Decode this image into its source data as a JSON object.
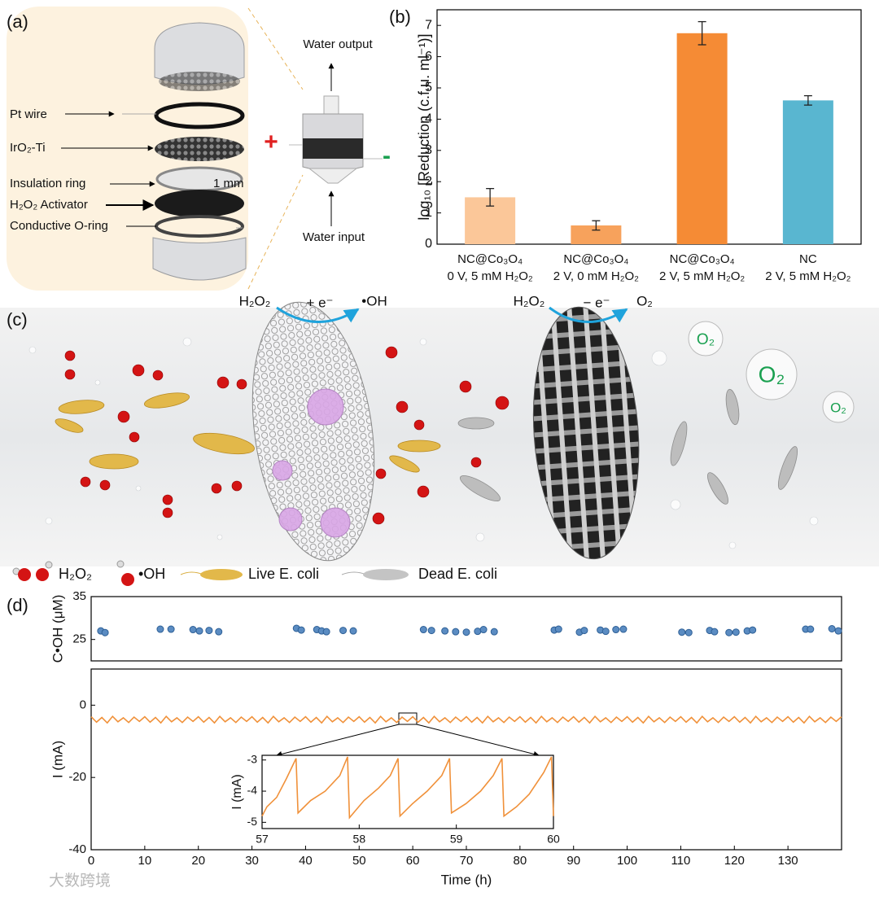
{
  "panel_a": {
    "label": "(a)",
    "parts": [
      "Pt wire",
      "IrO₂-Ti",
      "Insulation ring",
      "H₂O₂ Activator",
      "Conductive O-ring"
    ],
    "scale": "1 mm",
    "water_output": "Water output",
    "water_input": "Water input",
    "anode": "+",
    "cathode": "-"
  },
  "panel_c": {
    "label": "(c)",
    "reactions": [
      {
        "reactant": "H₂O₂",
        "electron": "+ e⁻",
        "product": "•OH"
      },
      {
        "reactant": "H₂O₂",
        "electron": "− e⁻",
        "product": "O₂"
      }
    ],
    "bubbles": [
      "O₂",
      "O₂",
      "O₂"
    ],
    "legend": [
      "H₂O₂",
      "•OH",
      "Live E. coli",
      "Dead E. coli"
    ]
  },
  "watermark": "大数跨境",
  "chart_data": [
    {
      "type": "bar",
      "panel": "(b)",
      "ylabel": "log₁₀ [Reduction (c.f.u. ml⁻¹)]",
      "categories": [
        [
          "NC@Co₃O₄",
          "0 V, 5 mM H₂O₂"
        ],
        [
          "NC@Co₃O₄",
          "2 V, 0 mM H₂O₂"
        ],
        [
          "NC@Co₃O₄",
          "2 V, 5 mM H₂O₂"
        ],
        [
          "NC",
          "2 V, 5 mM H₂O₂"
        ]
      ],
      "values": [
        1.5,
        0.6,
        6.75,
        4.6
      ],
      "errors": [
        0.28,
        0.15,
        0.37,
        0.15
      ],
      "colors": [
        "#fbc799",
        "#f7a25c",
        "#f58b35",
        "#59b6d0"
      ],
      "ylim": [
        0,
        7.5
      ],
      "yticks": [
        0,
        1,
        2,
        3,
        4,
        5,
        6,
        7
      ]
    },
    {
      "type": "scatter",
      "panel": "(d)",
      "ylabel": "C•OH (μM)",
      "color": "#5b8cc2",
      "x": [
        1.8,
        2.6,
        12.9,
        14.9,
        19,
        20.2,
        22,
        23.8,
        38.3,
        39.2,
        42.1,
        43,
        43.9,
        47,
        48.9,
        62,
        63.5,
        66,
        68,
        70,
        72.1,
        73.2,
        75.2,
        86.4,
        87.2,
        91.1,
        92,
        95,
        96,
        97.9,
        99.3,
        110.2,
        111.5,
        115.4,
        116.3,
        119,
        120.3,
        122.4,
        123.4,
        133.3,
        134.2,
        138.2,
        139.4
      ],
      "values": [
        27,
        26.6,
        27.4,
        27.4,
        27.3,
        27,
        27.1,
        26.8,
        27.6,
        27.2,
        27.3,
        27,
        26.8,
        27.1,
        27,
        27.3,
        27.1,
        27,
        26.8,
        26.7,
        26.9,
        27.3,
        26.8,
        27.2,
        27.4,
        26.7,
        27.1,
        27.2,
        26.9,
        27.3,
        27.4,
        26.7,
        26.6,
        27.1,
        26.8,
        26.6,
        26.7,
        27,
        27.2,
        27.4,
        27.4,
        27.5,
        27
      ],
      "xlim": [
        0,
        140
      ],
      "ylim": [
        20,
        35
      ],
      "yticks": [
        25,
        35
      ]
    },
    {
      "type": "line",
      "ylabel": "I (mA)",
      "xlabel": "Time (h)",
      "color": "#f0913a",
      "x": [
        0,
        1,
        2,
        3,
        4,
        5,
        6,
        7,
        8,
        9,
        10,
        11,
        12,
        13,
        14,
        15,
        16,
        17,
        18,
        19,
        20,
        21,
        22,
        23,
        24,
        25,
        26,
        27,
        28,
        29,
        30,
        31,
        32,
        33,
        34,
        35,
        36,
        37,
        38,
        39,
        40,
        41,
        42,
        43,
        44,
        45,
        46,
        47,
        48,
        49,
        50,
        51,
        52,
        53,
        54,
        55,
        56,
        57,
        58,
        59,
        60,
        61,
        62,
        63,
        64,
        65,
        66,
        67,
        68,
        69,
        70,
        71,
        72,
        73,
        74,
        75,
        76,
        77,
        78,
        79,
        80,
        81,
        82,
        83,
        84,
        85,
        86,
        87,
        88,
        89,
        90,
        91,
        92,
        93,
        94,
        95,
        96,
        97,
        98,
        99,
        100,
        101,
        102,
        103,
        104,
        105,
        106,
        107,
        108,
        109,
        110,
        111,
        112,
        113,
        114,
        115,
        116,
        117,
        118,
        119,
        120,
        121,
        122,
        123,
        124,
        125,
        126,
        127,
        128,
        129,
        130,
        131,
        132,
        133,
        134,
        135,
        136,
        137,
        138,
        139,
        140
      ],
      "values": [
        -3.2,
        -4.7,
        -3.4,
        -4.9,
        -3.1,
        -4.6,
        -3.5,
        -4.8,
        -3.3,
        -4.5,
        -3.2,
        -4.7,
        -3.4,
        -4.9,
        -3.1,
        -4.6,
        -3.5,
        -4.8,
        -3.3,
        -4.5,
        -3.2,
        -4.7,
        -3.4,
        -4.9,
        -3.1,
        -4.6,
        -3.5,
        -4.8,
        -3.3,
        -4.5,
        -3.2,
        -4.7,
        -3.4,
        -4.9,
        -3.1,
        -4.6,
        -3.5,
        -4.8,
        -3.3,
        -4.5,
        -3.2,
        -4.7,
        -3.4,
        -4.9,
        -3.1,
        -4.6,
        -3.5,
        -4.8,
        -3.3,
        -4.5,
        -3.2,
        -4.7,
        -3.4,
        -4.9,
        -3.1,
        -4.6,
        -3.5,
        -4.8,
        -3.3,
        -4.5,
        -3.2,
        -4.7,
        -3.4,
        -4.9,
        -3.1,
        -4.6,
        -3.5,
        -4.8,
        -3.3,
        -4.5,
        -3.2,
        -4.7,
        -3.4,
        -4.9,
        -3.1,
        -4.6,
        -3.5,
        -4.8,
        -3.3,
        -4.5,
        -3.2,
        -4.7,
        -3.4,
        -4.9,
        -3.1,
        -4.6,
        -3.5,
        -4.8,
        -3.3,
        -4.5,
        -3.2,
        -4.7,
        -3.4,
        -4.9,
        -3.1,
        -4.6,
        -3.5,
        -4.8,
        -3.3,
        -4.5,
        -3.2,
        -4.7,
        -3.4,
        -4.9,
        -3.1,
        -4.6,
        -3.5,
        -4.8,
        -3.3,
        -4.5,
        -3.2,
        -4.7,
        -3.4,
        -4.9,
        -3.1,
        -4.6,
        -3.5,
        -4.8,
        -3.3,
        -4.5,
        -3.2,
        -4.7,
        -3.4,
        -4.9,
        -3.1,
        -4.6,
        -3.5,
        -4.8,
        -3.3,
        -4.5,
        -3.2,
        -4.7,
        -3.4,
        -4.9,
        -3.1,
        -4.6,
        -3.5,
        -4.8,
        -3.3,
        -4.5,
        -3.2
      ],
      "xlim": [
        0,
        140
      ],
      "ylim": [
        -40,
        10
      ],
      "xticks": [
        0,
        10,
        20,
        30,
        40,
        50,
        60,
        70,
        80,
        90,
        100,
        110,
        120,
        130
      ],
      "yticks": [
        -40,
        -20,
        0
      ]
    },
    {
      "type": "line",
      "ylabel": "I (mA)",
      "color": "#f0913a",
      "x": [
        57,
        57.05,
        57.15,
        57.25,
        57.35,
        57.37,
        57.5,
        57.65,
        57.8,
        57.88,
        57.9,
        58.05,
        58.2,
        58.32,
        58.4,
        58.42,
        58.55,
        58.7,
        58.85,
        58.93,
        58.95,
        59.1,
        59.25,
        59.38,
        59.47,
        59.49,
        59.62,
        59.75,
        59.9,
        59.98,
        60
      ],
      "values": [
        -4.8,
        -4.5,
        -4.2,
        -3.6,
        -2.95,
        -4.7,
        -4.3,
        -4,
        -3.5,
        -2.9,
        -4.85,
        -4.3,
        -3.9,
        -3.5,
        -2.95,
        -4.8,
        -4.4,
        -4,
        -3.5,
        -2.95,
        -4.7,
        -4.4,
        -4,
        -3.5,
        -2.95,
        -4.8,
        -4.5,
        -4.1,
        -3.4,
        -2.9,
        -4.8
      ],
      "xlim": [
        57,
        60
      ],
      "ylim": [
        -5.2,
        -2.85
      ],
      "xticks": [
        57,
        58,
        59,
        60
      ],
      "yticks": [
        -5,
        -4,
        -3
      ]
    }
  ]
}
